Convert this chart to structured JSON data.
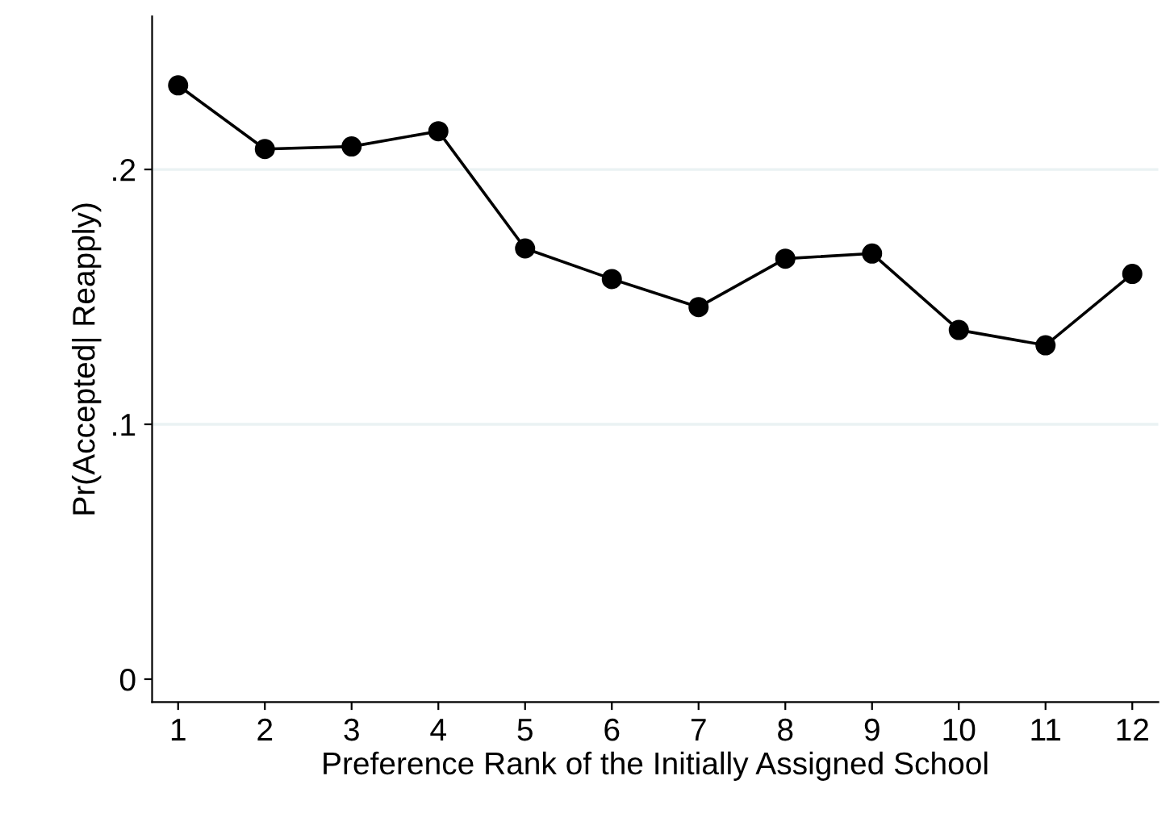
{
  "chart_data": {
    "type": "line",
    "xlabel": "Preference Rank of the Initially Assigned School",
    "ylabel": "Pr(Accepted| Reapply)",
    "x": [
      1,
      2,
      3,
      4,
      5,
      6,
      7,
      8,
      9,
      10,
      11,
      12
    ],
    "series": [
      {
        "color": "#000000",
        "values": [
          0.233,
          0.208,
          0.209,
          0.215,
          0.169,
          0.157,
          0.146,
          0.165,
          0.167,
          0.137,
          0.131,
          0.159
        ]
      }
    ],
    "xlim": [
      0.7,
      12.3
    ],
    "xticks": [
      1,
      2,
      3,
      4,
      5,
      6,
      7,
      8,
      9,
      10,
      11,
      12
    ],
    "ylim": [
      -0.009,
      0.26
    ],
    "yticks": [
      {
        "value": 0,
        "label": "0"
      },
      {
        "value": 0.1,
        "label": ".1"
      },
      {
        "value": 0.2,
        "label": ".2"
      }
    ],
    "grid": "y",
    "marker": "circle",
    "line_style": "solid"
  }
}
